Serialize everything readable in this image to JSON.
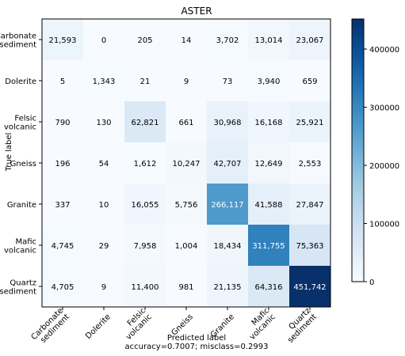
{
  "chart_data": {
    "type": "heatmap",
    "title": "ASTER",
    "ylabel": "True label",
    "xlabel": "Predicted label",
    "xlabel_sub": "accuracy=0.7007; misclass=0.2993",
    "rows": [
      [
        "Carbonate",
        "sediment"
      ],
      [
        "Dolerite"
      ],
      [
        "Felsic",
        "volcanic"
      ],
      [
        "Gneiss"
      ],
      [
        "Granite"
      ],
      [
        "Mafic",
        "volcanic"
      ],
      [
        "Quartz",
        "sediment"
      ]
    ],
    "columns": [
      [
        "Carbonate",
        "sediment"
      ],
      [
        "Dolerite"
      ],
      [
        "Felsic",
        "volcanic"
      ],
      [
        "Gneiss"
      ],
      [
        "Granite"
      ],
      [
        "Mafic",
        "volcanic"
      ],
      [
        "Quartz",
        "sediment"
      ]
    ],
    "values": [
      [
        21593,
        0,
        205,
        14,
        3702,
        13014,
        23067
      ],
      [
        5,
        1343,
        21,
        9,
        73,
        3940,
        659
      ],
      [
        790,
        130,
        62821,
        661,
        30968,
        16168,
        25921
      ],
      [
        196,
        54,
        1612,
        10247,
        42707,
        12649,
        2553
      ],
      [
        337,
        10,
        16055,
        5756,
        266117,
        41588,
        27847
      ],
      [
        4745,
        29,
        7958,
        1004,
        18434,
        311755,
        75363
      ],
      [
        4705,
        9,
        11400,
        981,
        21135,
        64316,
        451742
      ]
    ],
    "colorbar": {
      "colormap": "Blues",
      "range": [
        0,
        451742
      ],
      "ticks": [
        0,
        100000,
        200000,
        300000,
        400000
      ]
    },
    "grid": false
  }
}
